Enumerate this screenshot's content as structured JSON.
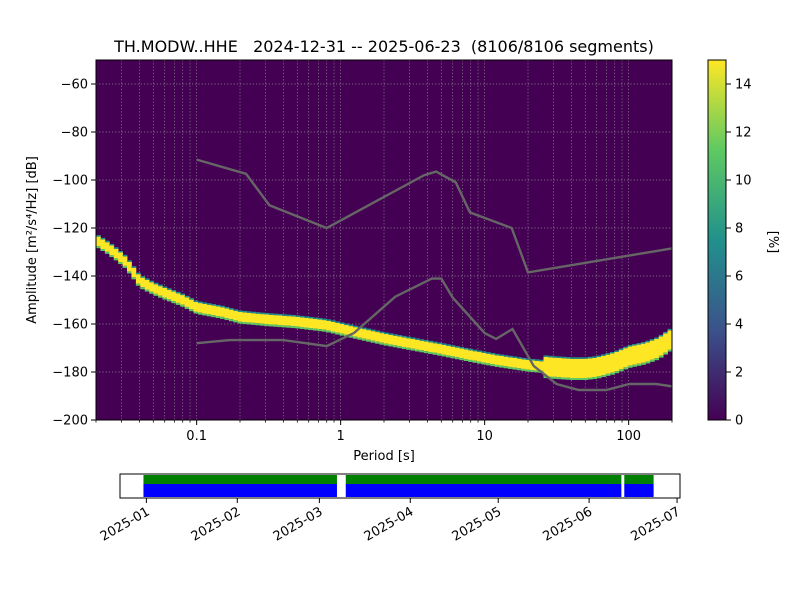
{
  "chart_data": [
    {
      "type": "heatmap",
      "title": "TH.MODW..HHE   2024-12-31 -- 2025-06-23  (8106/8106 segments)",
      "xlabel": "Period [s]",
      "ylabel": "Amplitude [m²/s⁴/Hz] [dB]",
      "x_scale": "log",
      "xlim": [
        0.02,
        200
      ],
      "ylim": [
        -200,
        -50
      ],
      "x_ticks": [
        {
          "value": 0.1,
          "label": "0.1"
        },
        {
          "value": 1,
          "label": "1"
        },
        {
          "value": 10,
          "label": "10"
        },
        {
          "value": 100,
          "label": "100"
        }
      ],
      "y_ticks": [
        {
          "value": -60,
          "label": "−60"
        },
        {
          "value": -80,
          "label": "−80"
        },
        {
          "value": -100,
          "label": "−100"
        },
        {
          "value": -120,
          "label": "−120"
        },
        {
          "value": -140,
          "label": "−140"
        },
        {
          "value": -160,
          "label": "−160"
        },
        {
          "value": -180,
          "label": "−180"
        },
        {
          "value": -200,
          "label": "−200"
        }
      ],
      "grid": true,
      "colorbar": {
        "label": "[%]",
        "range": [
          0,
          15
        ],
        "ticks": [
          {
            "value": 0,
            "label": "0"
          },
          {
            "value": 2,
            "label": "2"
          },
          {
            "value": 4,
            "label": "4"
          },
          {
            "value": 6,
            "label": "6"
          },
          {
            "value": 8,
            "label": "8"
          },
          {
            "value": 10,
            "label": "10"
          },
          {
            "value": 12,
            "label": "12"
          },
          {
            "value": 14,
            "label": "14"
          }
        ],
        "colormap": [
          "#440154",
          "#3b528b",
          "#21918c",
          "#5ec962",
          "#fde725"
        ]
      },
      "psd_mode": {
        "period": [
          0.02,
          0.024,
          0.028,
          0.032,
          0.036,
          0.04,
          0.05,
          0.06,
          0.08,
          0.1,
          0.15,
          0.2,
          0.3,
          0.5,
          0.8,
          1.2,
          2,
          3,
          5,
          8,
          12,
          20,
          30,
          40,
          50,
          60,
          80,
          100,
          130,
          160,
          200
        ],
        "amplitude": [
          -125,
          -128,
          -131,
          -134,
          -138,
          -142,
          -145,
          -147,
          -150,
          -153,
          -155,
          -157,
          -158,
          -159,
          -160.5,
          -163,
          -166,
          -168,
          -170.5,
          -173,
          -175,
          -177,
          -178,
          -178.5,
          -178.5,
          -178,
          -176,
          -173.5,
          -172,
          -170,
          -166
        ]
      },
      "noise_model_high": {
        "period": [
          0.1,
          0.22,
          0.32,
          0.8,
          3.8,
          4.6,
          6.3,
          7.9,
          15.4,
          20,
          200
        ],
        "amplitude": [
          -91.5,
          -97.4,
          -110.5,
          -120,
          -98,
          -96.5,
          -101,
          -113.5,
          -120,
          -138.5,
          -128.5
        ]
      },
      "noise_model_low": {
        "period": [
          0.1,
          0.17,
          0.4,
          0.8,
          1.24,
          2.4,
          4.3,
          5,
          6,
          10,
          12,
          15.6,
          21.9,
          31.6,
          45,
          70,
          101,
          154,
          200
        ],
        "amplitude": [
          -168,
          -166.7,
          -166.7,
          -169.2,
          -163.7,
          -148.6,
          -141.1,
          -141.1,
          -149,
          -163.8,
          -166.2,
          -162.1,
          -177.5,
          -185,
          -187.5,
          -187.5,
          -185,
          -185,
          -186
        ]
      }
    },
    {
      "type": "timeline",
      "x_ticks": [
        {
          "value": "2025-01-01",
          "label": "2025-01"
        },
        {
          "value": "2025-02-01",
          "label": "2025-02"
        },
        {
          "value": "2025-03-01",
          "label": "2025-03"
        },
        {
          "value": "2025-04-01",
          "label": "2025-04"
        },
        {
          "value": "2025-05-01",
          "label": "2025-05"
        },
        {
          "value": "2025-06-01",
          "label": "2025-06"
        },
        {
          "value": "2025-07-01",
          "label": "2025-07"
        }
      ],
      "xlim": [
        "2024-12-23",
        "2025-07-02"
      ],
      "colors": {
        "data": "#0000ff",
        "used": "#008000"
      },
      "data_segments": [
        {
          "start": "2024-12-31",
          "end": "2025-03-07"
        },
        {
          "start": "2025-03-10",
          "end": "2025-06-12"
        },
        {
          "start": "2025-06-13",
          "end": "2025-06-23"
        }
      ]
    }
  ]
}
